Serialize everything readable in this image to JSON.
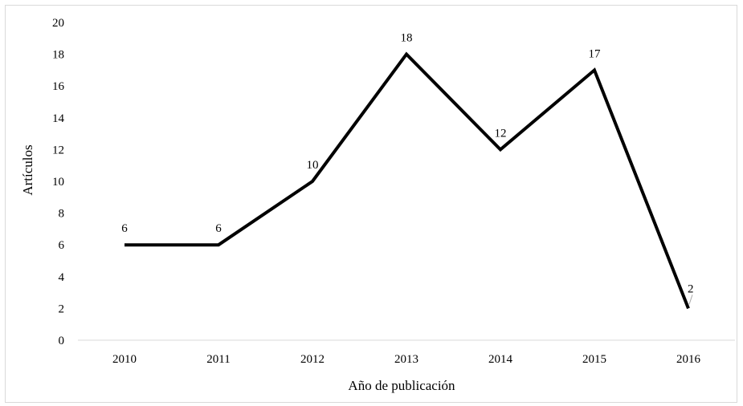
{
  "chart_data": {
    "type": "line",
    "title": "",
    "xlabel": "Año de publicación",
    "ylabel": "Artículos",
    "categories": [
      "2010",
      "2011",
      "2012",
      "2013",
      "2014",
      "2015",
      "2016"
    ],
    "series": [
      {
        "values": [
          6,
          6,
          10,
          18,
          12,
          17,
          2
        ]
      }
    ],
    "ylim": [
      0,
      20
    ],
    "yticks": [
      0,
      2,
      4,
      6,
      8,
      10,
      12,
      14,
      16,
      18,
      20
    ],
    "grid": false,
    "legend": "none",
    "line_color": "#000000",
    "axis_color": "#d9d9d9"
  }
}
